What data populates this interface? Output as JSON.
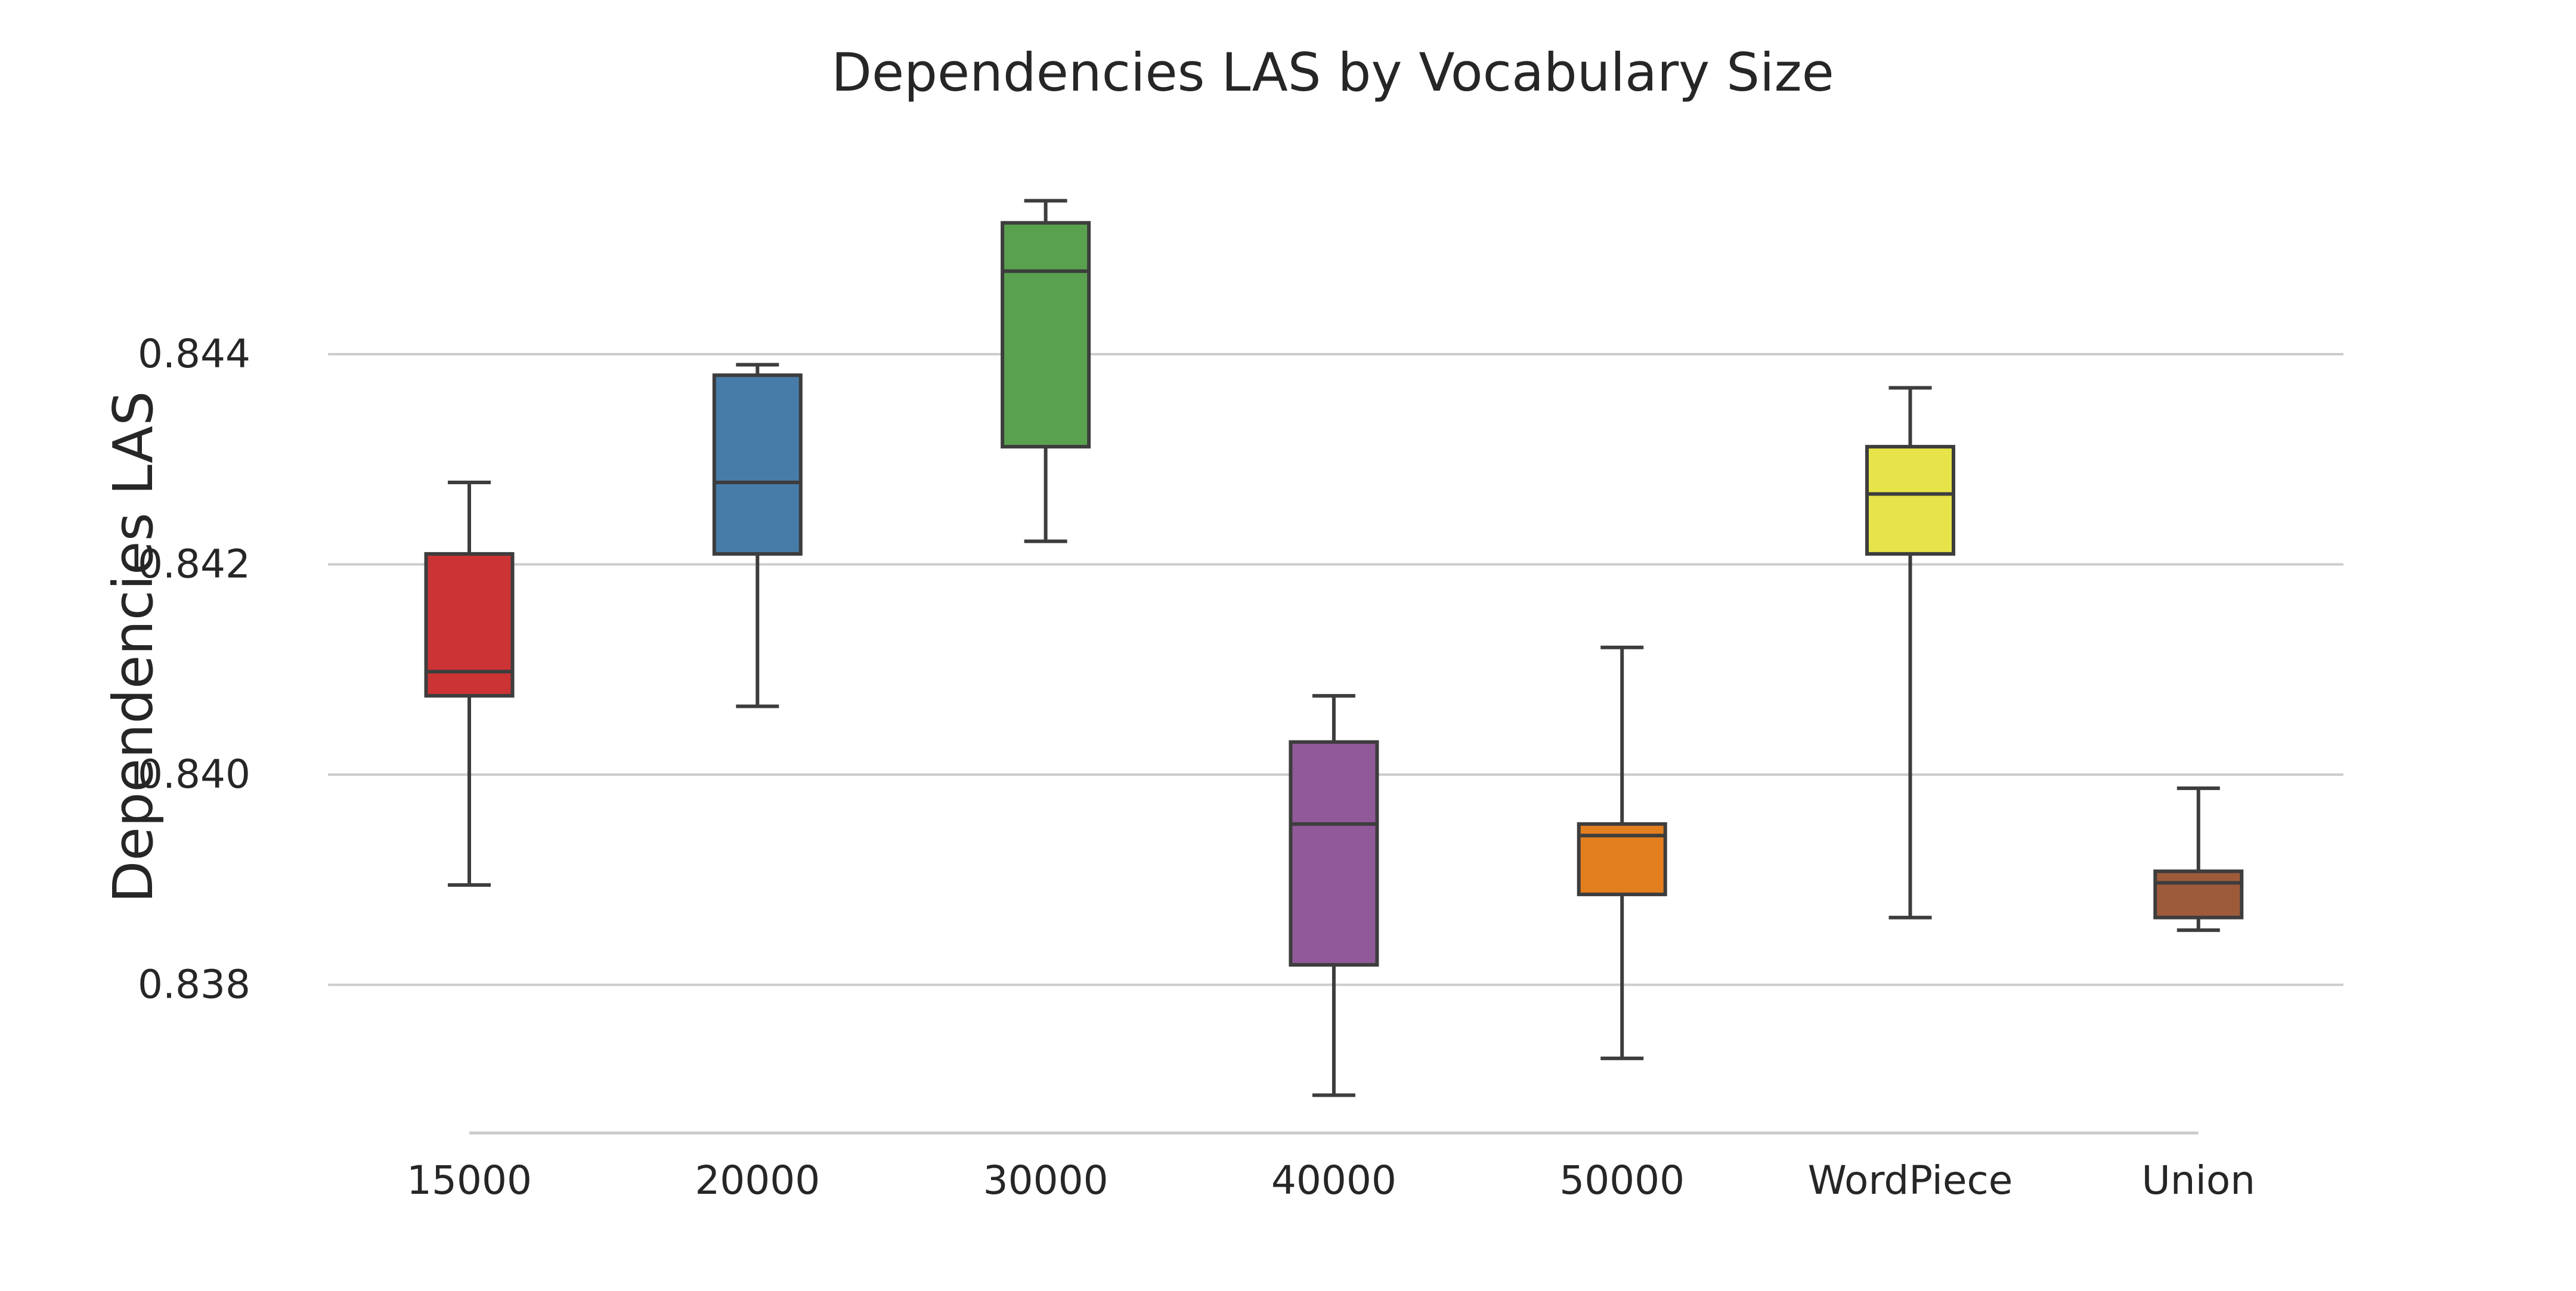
{
  "chart_data": {
    "type": "box",
    "title": "Dependencies LAS by Vocabulary Size",
    "xlabel": "",
    "ylabel": "Dependencies LAS",
    "ylim": [
      0.8366,
      0.8462
    ],
    "yticks": [
      0.838,
      0.84,
      0.842,
      0.844
    ],
    "ytick_labels": [
      "0.838",
      "0.840",
      "0.842",
      "0.844"
    ],
    "grid": "horizontal",
    "categories": [
      "15000",
      "20000",
      "30000",
      "40000",
      "50000",
      "WordPiece",
      "Union"
    ],
    "colors": [
      "#cb3335",
      "#477ca8",
      "#59a14f",
      "#905998",
      "#e37e1e",
      "#e6e449",
      "#9e5b3a"
    ],
    "series": [
      {
        "category": "15000",
        "whisker_low": 0.83895,
        "q1": 0.84075,
        "median": 0.84098,
        "q3": 0.8421,
        "whisker_high": 0.84278
      },
      {
        "category": "20000",
        "whisker_low": 0.84065,
        "q1": 0.8421,
        "median": 0.84278,
        "q3": 0.8438,
        "whisker_high": 0.8439
      },
      {
        "category": "30000",
        "whisker_low": 0.84222,
        "q1": 0.84312,
        "median": 0.84479,
        "q3": 0.84525,
        "whisker_high": 0.84546
      },
      {
        "category": "40000",
        "whisker_low": 0.83695,
        "q1": 0.83819,
        "median": 0.83953,
        "q3": 0.84031,
        "whisker_high": 0.84075
      },
      {
        "category": "50000",
        "whisker_low": 0.8373,
        "q1": 0.83886,
        "median": 0.83942,
        "q3": 0.83953,
        "whisker_high": 0.84121
      },
      {
        "category": "WordPiece",
        "whisker_low": 0.83864,
        "q1": 0.8421,
        "median": 0.84267,
        "q3": 0.84312,
        "whisker_high": 0.84368
      },
      {
        "category": "Union",
        "whisker_low": 0.83852,
        "q1": 0.83864,
        "median": 0.83897,
        "q3": 0.83908,
        "whisker_high": 0.83987
      }
    ]
  }
}
